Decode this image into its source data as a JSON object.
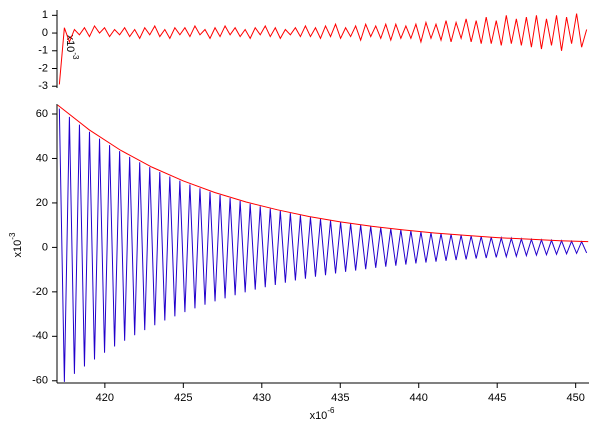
{
  "chart_data": [
    {
      "type": "line",
      "ylim": [
        -3.1,
        1.3
      ],
      "yticks": [
        1,
        0,
        -1,
        -2,
        -3
      ],
      "xlim": [
        416.95,
        450.85
      ],
      "y_label": "x10",
      "y_label_exponent": "-3",
      "series": [
        {
          "color": "#ff0000",
          "x": [
            417.1,
            417.42,
            417.74,
            418.06,
            418.38,
            418.7,
            419.02,
            419.34,
            419.66,
            419.98,
            420.3,
            420.62,
            420.94,
            421.26,
            421.58,
            421.9,
            422.22,
            422.54,
            422.86,
            423.18,
            423.5,
            423.82,
            424.14,
            424.46,
            424.78,
            425.1,
            425.42,
            425.74,
            426.06,
            426.38,
            426.7,
            427.02,
            427.34,
            427.66,
            427.98,
            428.3,
            428.62,
            428.94,
            429.26,
            429.58,
            429.9,
            430.22,
            430.54,
            430.86,
            431.18,
            431.5,
            431.82,
            432.14,
            432.46,
            432.78,
            433.1,
            433.42,
            433.74,
            434.06,
            434.38,
            434.7,
            435.02,
            435.34,
            435.66,
            435.98,
            436.3,
            436.62,
            436.94,
            437.26,
            437.58,
            437.9,
            438.22,
            438.54,
            438.86,
            439.18,
            439.5,
            439.82,
            440.14,
            440.46,
            440.78,
            441.1,
            441.42,
            441.74,
            442.06,
            442.38,
            442.7,
            443.02,
            443.34,
            443.66,
            443.98,
            444.3,
            444.62,
            444.94,
            445.26,
            445.58,
            445.9,
            446.22,
            446.54,
            446.86,
            447.18,
            447.5,
            447.82,
            448.14,
            448.46,
            448.78,
            449.1,
            449.42,
            449.74,
            450.06,
            450.38,
            450.7
          ],
          "values": [
            -2.9,
            0.3,
            -0.5,
            0.2,
            -0.1,
            0.3,
            -0.2,
            0.4,
            0.0,
            0.3,
            -0.2,
            0.2,
            -0.1,
            0.3,
            -0.2,
            0.2,
            -0.3,
            0.3,
            -0.1,
            0.4,
            -0.2,
            0.2,
            -0.3,
            0.3,
            -0.1,
            0.3,
            -0.2,
            0.4,
            -0.1,
            0.2,
            -0.3,
            0.3,
            -0.2,
            0.4,
            -0.1,
            0.3,
            -0.2,
            0.2,
            -0.3,
            0.3,
            -0.1,
            0.4,
            -0.2,
            0.3,
            -0.3,
            0.2,
            -0.1,
            0.3,
            -0.2,
            0.4,
            -0.2,
            0.3,
            -0.3,
            0.4,
            -0.2,
            0.5,
            -0.3,
            0.3,
            -0.2,
            0.4,
            -0.4,
            0.5,
            -0.2,
            0.4,
            -0.3,
            0.5,
            -0.4,
            0.5,
            -0.3,
            0.4,
            -0.3,
            0.5,
            -0.5,
            0.6,
            -0.3,
            0.5,
            -0.4,
            0.7,
            -0.5,
            0.6,
            -0.3,
            0.8,
            -0.5,
            0.7,
            -0.6,
            0.9,
            -0.6,
            0.7,
            -0.7,
            1.0,
            -0.6,
            0.8,
            -0.7,
            0.9,
            -0.8,
            1.0,
            -0.9,
            0.8,
            -0.7,
            1.0,
            -1.0,
            0.9,
            -0.6,
            1.1,
            -0.8,
            0.2
          ]
        }
      ]
    },
    {
      "type": "line",
      "ylim": [
        -61,
        64.5
      ],
      "yticks": [
        60,
        40,
        20,
        0,
        -20,
        -40,
        -60
      ],
      "xlim": [
        416.95,
        450.85
      ],
      "xticks": [
        420,
        425,
        430,
        435,
        440,
        445,
        450
      ],
      "y_label": "x10",
      "y_label_exponent": "-3",
      "x_label": "x10",
      "x_label_exponent": "-6",
      "series": [
        {
          "color": "#2200cc",
          "x": [
            417.1,
            417.42,
            417.74,
            418.06,
            418.38,
            418.7,
            419.02,
            419.34,
            419.66,
            419.98,
            420.3,
            420.62,
            420.94,
            421.26,
            421.58,
            421.9,
            422.22,
            422.54,
            422.86,
            423.18,
            423.5,
            423.82,
            424.14,
            424.46,
            424.78,
            425.1,
            425.42,
            425.74,
            426.06,
            426.38,
            426.7,
            427.02,
            427.34,
            427.66,
            427.98,
            428.3,
            428.62,
            428.94,
            429.26,
            429.58,
            429.9,
            430.22,
            430.54,
            430.86,
            431.18,
            431.5,
            431.82,
            432.14,
            432.46,
            432.78,
            433.1,
            433.42,
            433.74,
            434.06,
            434.38,
            434.7,
            435.02,
            435.34,
            435.66,
            435.98,
            436.3,
            436.62,
            436.94,
            437.26,
            437.58,
            437.9,
            438.22,
            438.54,
            438.86,
            439.18,
            439.5,
            439.82,
            440.14,
            440.46,
            440.78,
            441.1,
            441.42,
            441.74,
            442.06,
            442.38,
            442.7,
            443.02,
            443.34,
            443.66,
            443.98,
            444.3,
            444.62,
            444.94,
            445.26,
            445.58,
            445.9,
            446.22,
            446.54,
            446.86,
            447.18,
            447.5,
            447.82,
            448.14,
            448.46,
            448.78,
            449.1,
            449.42,
            449.74,
            450.06,
            450.38,
            450.7
          ],
          "values": [
            62.4,
            -60.5,
            58.7,
            -56.9,
            55.2,
            -53.6,
            52.0,
            -50.4,
            48.9,
            -47.4,
            46.0,
            -44.6,
            43.3,
            -42.0,
            40.7,
            -39.5,
            38.3,
            -37.2,
            36.1,
            -35.0,
            33.9,
            -32.9,
            31.9,
            -31.0,
            30.0,
            -29.1,
            28.3,
            -27.4,
            26.6,
            -25.8,
            25.0,
            -24.3,
            23.6,
            -22.9,
            22.2,
            -21.5,
            20.9,
            -20.2,
            19.6,
            -19.0,
            18.5,
            -17.9,
            17.4,
            -16.9,
            16.4,
            -15.9,
            15.4,
            -14.9,
            14.5,
            -14.1,
            13.6,
            -13.2,
            12.8,
            -12.5,
            12.1,
            -11.7,
            11.4,
            -11.0,
            10.7,
            -10.4,
            10.1,
            -9.8,
            9.5,
            -9.2,
            8.9,
            -8.7,
            8.4,
            -8.2,
            7.9,
            -7.7,
            7.5,
            -7.2,
            7.0,
            -6.8,
            6.6,
            -6.4,
            6.2,
            -6.0,
            5.9,
            -5.7,
            5.5,
            -5.4,
            5.2,
            -5.0,
            4.9,
            -4.8,
            4.6,
            -4.5,
            4.3,
            -4.2,
            4.1,
            -4.0,
            3.8,
            -3.7,
            3.6,
            -3.5,
            3.4,
            -3.3,
            3.2,
            -3.1,
            3.0,
            -2.9,
            2.8,
            -2.7,
            2.6,
            -2.5
          ]
        },
        {
          "color": "#ff0000",
          "x": [
            417,
            419,
            421,
            423,
            425,
            427,
            429,
            431,
            433,
            435,
            437,
            439,
            441,
            443,
            445,
            447,
            449,
            450.8
          ],
          "values": [
            64.0,
            52.9,
            43.7,
            36.1,
            29.9,
            24.7,
            20.4,
            16.9,
            13.9,
            11.5,
            9.5,
            7.9,
            6.5,
            5.4,
            4.4,
            3.7,
            3.0,
            2.6
          ]
        }
      ]
    }
  ]
}
